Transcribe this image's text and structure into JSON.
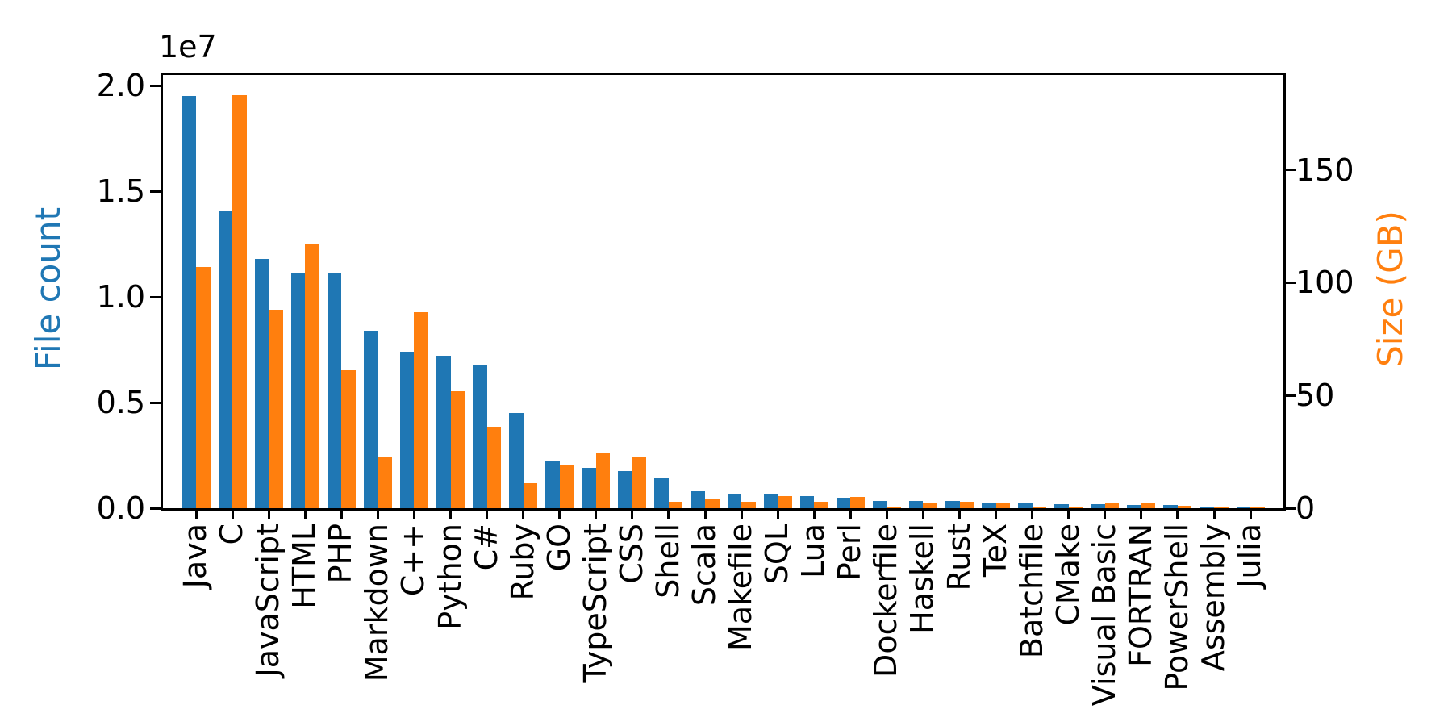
{
  "figure": {
    "offset_text": "1e7",
    "left_axis": {
      "label": "File count",
      "color": "#1f77b4",
      "tick_labels": [
        "0.0",
        "0.5",
        "1.0",
        "1.5",
        "2.0"
      ],
      "tick_values_1e7": [
        0.0,
        0.5,
        1.0,
        1.5,
        2.0
      ]
    },
    "right_axis": {
      "label": "Size (GB)",
      "color": "#ff7f0e",
      "tick_labels": [
        "0",
        "50",
        "100",
        "150"
      ],
      "tick_values_gb": [
        0,
        50,
        100,
        150
      ]
    }
  },
  "chart_data": {
    "type": "bar",
    "title": "",
    "xlabel": "",
    "ylabel_left": "File count",
    "ylabel_right": "Size (GB)",
    "grid": false,
    "legend": "none",
    "ylim_left": [
      0,
      20500000
    ],
    "ylim_right": [
      0,
      192
    ],
    "left_scale_note": "left axis in units of 1e7 files",
    "categories": [
      "Java",
      "C",
      "JavaScript",
      "HTML",
      "PHP",
      "Markdown",
      "C++",
      "Python",
      "C#",
      "Ruby",
      "GO",
      "TypeScript",
      "CSS",
      "Shell",
      "Scala",
      "Makefile",
      "SQL",
      "Lua",
      "Perl",
      "Dockerfile",
      "Haskell",
      "Rust",
      "TeX",
      "Batchfile",
      "CMake",
      "Visual Basic",
      "FORTRAN",
      "PowerShell",
      "Assembly",
      "Julia"
    ],
    "series": [
      {
        "name": "File count",
        "axis": "left",
        "color": "#1f77b4",
        "values": [
          19500000,
          14100000,
          11800000,
          11150000,
          11150000,
          8400000,
          7400000,
          7200000,
          6800000,
          4500000,
          2250000,
          1900000,
          1750000,
          1400000,
          800000,
          680000,
          680000,
          580000,
          500000,
          360000,
          330000,
          330000,
          250000,
          250000,
          180000,
          180000,
          170000,
          150000,
          90000,
          70000
        ]
      },
      {
        "name": "Size (GB)",
        "axis": "right",
        "color": "#ff7f0e",
        "values": [
          107,
          183,
          88,
          117,
          61,
          23,
          87,
          52,
          36,
          11,
          19,
          24.5,
          23,
          3,
          4,
          3,
          5.5,
          2.8,
          4.9,
          0.7,
          2.1,
          2.7,
          2.6,
          0.7,
          0.5,
          2.3,
          2.1,
          1.1,
          0.5,
          0.3
        ]
      }
    ]
  }
}
